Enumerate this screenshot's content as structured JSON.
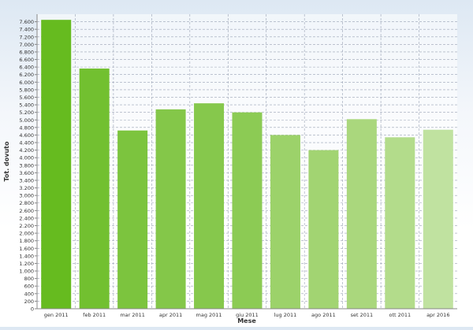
{
  "chart_data": {
    "type": "bar",
    "xlabel": "Mese",
    "ylabel": "Tot. dovuto",
    "ylim": [
      0,
      7800
    ],
    "ytick_step": 200,
    "categories": [
      "gen 2011",
      "feb 2011",
      "mar 2011",
      "apr 2011",
      "mag 2011",
      "giu 2011",
      "lug 2011",
      "ago 2011",
      "set 2011",
      "ott 2011",
      "apr 2016"
    ],
    "values": [
      7650,
      6360,
      4720,
      5280,
      5440,
      5200,
      4600,
      4200,
      5020,
      4540,
      4740
    ],
    "bar_colors": [
      "#66bb1f",
      "#72c030",
      "#7cc43e",
      "#84c749",
      "#86c84c",
      "#8ccb54",
      "#9cd26a",
      "#a2d472",
      "#aad77d",
      "#b3dc8b",
      "#c0e2a0"
    ],
    "grid": true
  }
}
